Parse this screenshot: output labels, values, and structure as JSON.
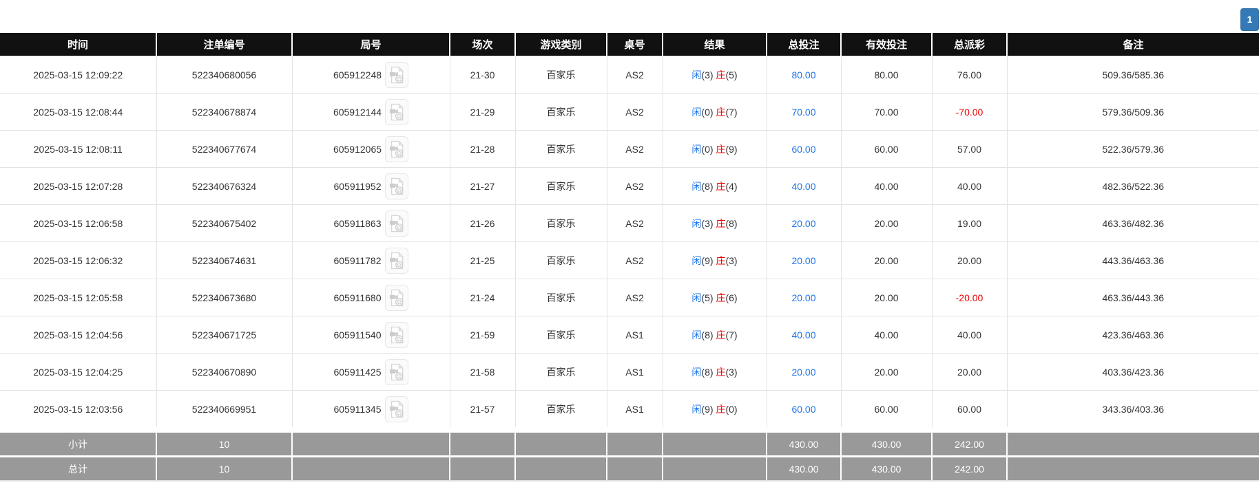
{
  "pagination": {
    "current_page": "1"
  },
  "colors": {
    "header_bg": "#111111",
    "link_blue": "#1a73e8",
    "negative_red": "#ee0000",
    "summary_bg": "#999999",
    "pagination_blue": "#337ab7"
  },
  "table": {
    "columns": [
      {
        "key": "time",
        "label": "时间"
      },
      {
        "key": "bet-no",
        "label": "注单编号"
      },
      {
        "key": "round-no",
        "label": "局号"
      },
      {
        "key": "session",
        "label": "场次"
      },
      {
        "key": "game-type",
        "label": "游戏类别"
      },
      {
        "key": "table-no",
        "label": "桌号"
      },
      {
        "key": "result",
        "label": "结果"
      },
      {
        "key": "total-bet",
        "label": "总投注"
      },
      {
        "key": "valid-bet",
        "label": "有效投注"
      },
      {
        "key": "payout",
        "label": "总派彩"
      },
      {
        "key": "remark",
        "label": "备注"
      }
    ],
    "rows": [
      {
        "time": "2025-03-15 12:09:22",
        "bet_no": "522340680056",
        "round_no": "605912248",
        "session": "21-30",
        "game_type": "百家乐",
        "table_no": "AS2",
        "player_label": "闲",
        "player_score": "(3)",
        "banker_label": "庄",
        "banker_score": "(5)",
        "total_bet": "80.00",
        "valid_bet": "80.00",
        "payout": "76.00",
        "remark": "509.36/585.36"
      },
      {
        "time": "2025-03-15 12:08:44",
        "bet_no": "522340678874",
        "round_no": "605912144",
        "session": "21-29",
        "game_type": "百家乐",
        "table_no": "AS2",
        "player_label": "闲",
        "player_score": "(0)",
        "banker_label": "庄",
        "banker_score": "(7)",
        "total_bet": "70.00",
        "valid_bet": "70.00",
        "payout": "-70.00",
        "remark": "579.36/509.36"
      },
      {
        "time": "2025-03-15 12:08:11",
        "bet_no": "522340677674",
        "round_no": "605912065",
        "session": "21-28",
        "game_type": "百家乐",
        "table_no": "AS2",
        "player_label": "闲",
        "player_score": "(0)",
        "banker_label": "庄",
        "banker_score": "(9)",
        "total_bet": "60.00",
        "valid_bet": "60.00",
        "payout": "57.00",
        "remark": "522.36/579.36"
      },
      {
        "time": "2025-03-15 12:07:28",
        "bet_no": "522340676324",
        "round_no": "605911952",
        "session": "21-27",
        "game_type": "百家乐",
        "table_no": "AS2",
        "player_label": "闲",
        "player_score": "(8)",
        "banker_label": "庄",
        "banker_score": "(4)",
        "total_bet": "40.00",
        "valid_bet": "40.00",
        "payout": "40.00",
        "remark": "482.36/522.36"
      },
      {
        "time": "2025-03-15 12:06:58",
        "bet_no": "522340675402",
        "round_no": "605911863",
        "session": "21-26",
        "game_type": "百家乐",
        "table_no": "AS2",
        "player_label": "闲",
        "player_score": "(3)",
        "banker_label": "庄",
        "banker_score": "(8)",
        "total_bet": "20.00",
        "valid_bet": "20.00",
        "payout": "19.00",
        "remark": "463.36/482.36"
      },
      {
        "time": "2025-03-15 12:06:32",
        "bet_no": "522340674631",
        "round_no": "605911782",
        "session": "21-25",
        "game_type": "百家乐",
        "table_no": "AS2",
        "player_label": "闲",
        "player_score": "(9)",
        "banker_label": "庄",
        "banker_score": "(3)",
        "total_bet": "20.00",
        "valid_bet": "20.00",
        "payout": "20.00",
        "remark": "443.36/463.36"
      },
      {
        "time": "2025-03-15 12:05:58",
        "bet_no": "522340673680",
        "round_no": "605911680",
        "session": "21-24",
        "game_type": "百家乐",
        "table_no": "AS2",
        "player_label": "闲",
        "player_score": "(5)",
        "banker_label": "庄",
        "banker_score": "(6)",
        "total_bet": "20.00",
        "valid_bet": "20.00",
        "payout": "-20.00",
        "remark": "463.36/443.36"
      },
      {
        "time": "2025-03-15 12:04:56",
        "bet_no": "522340671725",
        "round_no": "605911540",
        "session": "21-59",
        "game_type": "百家乐",
        "table_no": "AS1",
        "player_label": "闲",
        "player_score": "(8)",
        "banker_label": "庄",
        "banker_score": "(7)",
        "total_bet": "40.00",
        "valid_bet": "40.00",
        "payout": "40.00",
        "remark": "423.36/463.36"
      },
      {
        "time": "2025-03-15 12:04:25",
        "bet_no": "522340670890",
        "round_no": "605911425",
        "session": "21-58",
        "game_type": "百家乐",
        "table_no": "AS1",
        "player_label": "闲",
        "player_score": "(8)",
        "banker_label": "庄",
        "banker_score": "(3)",
        "total_bet": "20.00",
        "valid_bet": "20.00",
        "payout": "20.00",
        "remark": "403.36/423.36"
      },
      {
        "time": "2025-03-15 12:03:56",
        "bet_no": "522340669951",
        "round_no": "605911345",
        "session": "21-57",
        "game_type": "百家乐",
        "table_no": "AS1",
        "player_label": "闲",
        "player_score": "(9)",
        "banker_label": "庄",
        "banker_score": "(0)",
        "total_bet": "60.00",
        "valid_bet": "60.00",
        "payout": "60.00",
        "remark": "343.36/403.36"
      }
    ],
    "summary_rows": [
      {
        "label": "小计",
        "count": "10",
        "total_bet": "430.00",
        "valid_bet": "430.00",
        "payout": "242.00"
      },
      {
        "label": "总计",
        "count": "10",
        "total_bet": "430.00",
        "valid_bet": "430.00",
        "payout": "242.00"
      }
    ]
  },
  "icons": {
    "video_replay": "video-file-icon"
  }
}
